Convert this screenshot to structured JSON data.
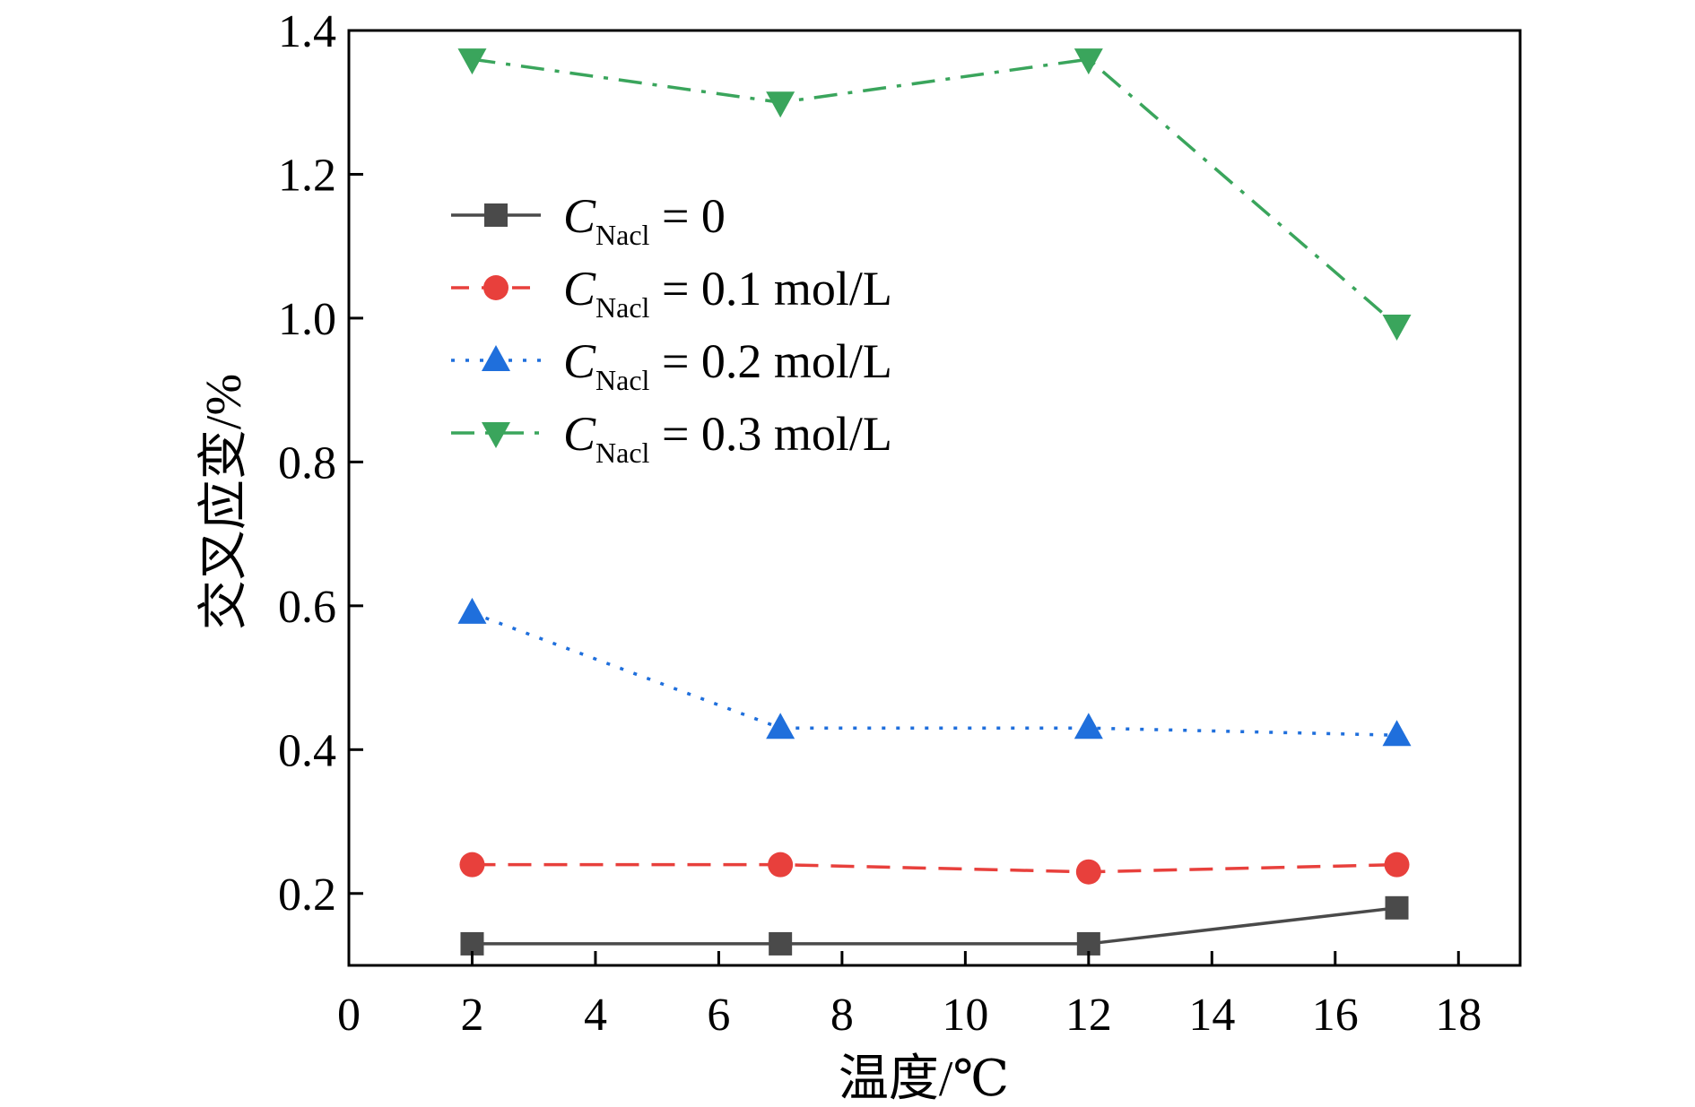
{
  "chart_data": {
    "type": "line",
    "xlabel": "温度/℃",
    "ylabel": "交叉应变/%",
    "xlim": [
      0,
      19
    ],
    "ylim": [
      0.1,
      1.4
    ],
    "xticks": [
      0,
      2,
      4,
      6,
      8,
      10,
      12,
      14,
      16,
      18
    ],
    "yticks": [
      0.2,
      0.4,
      0.6,
      0.8,
      1.0,
      1.2,
      1.4
    ],
    "ytick_labels": [
      "0.2",
      "0.4",
      "0.6",
      "0.8",
      "1.0",
      "1.2",
      "1.4"
    ],
    "grid": false,
    "legend_position": "upper-left",
    "x": [
      2,
      7,
      12,
      17
    ],
    "series": [
      {
        "name_main": "C",
        "name_sub": "Nacl",
        "name_rest": " = 0",
        "values": [
          0.13,
          0.13,
          0.13,
          0.18
        ],
        "color": "#4a4a4a",
        "marker": "square",
        "dash": "solid"
      },
      {
        "name_main": "C",
        "name_sub": "Nacl",
        "name_rest": " = 0.1 mol/L",
        "values": [
          0.24,
          0.24,
          0.23,
          0.24
        ],
        "color": "#e8403c",
        "marker": "circle",
        "dash": "dashed"
      },
      {
        "name_main": "C",
        "name_sub": "Nacl",
        "name_rest": " = 0.2 mol/L",
        "values": [
          0.59,
          0.43,
          0.43,
          0.42
        ],
        "color": "#1f6fdc",
        "marker": "triangle-up",
        "dash": "dotted"
      },
      {
        "name_main": "C",
        "name_sub": "Nacl",
        "name_rest": " = 0.3 mol/L",
        "values": [
          1.36,
          1.3,
          1.36,
          0.99
        ],
        "color": "#3aa55c",
        "marker": "triangle-down",
        "dash": "dash-dot"
      }
    ]
  }
}
